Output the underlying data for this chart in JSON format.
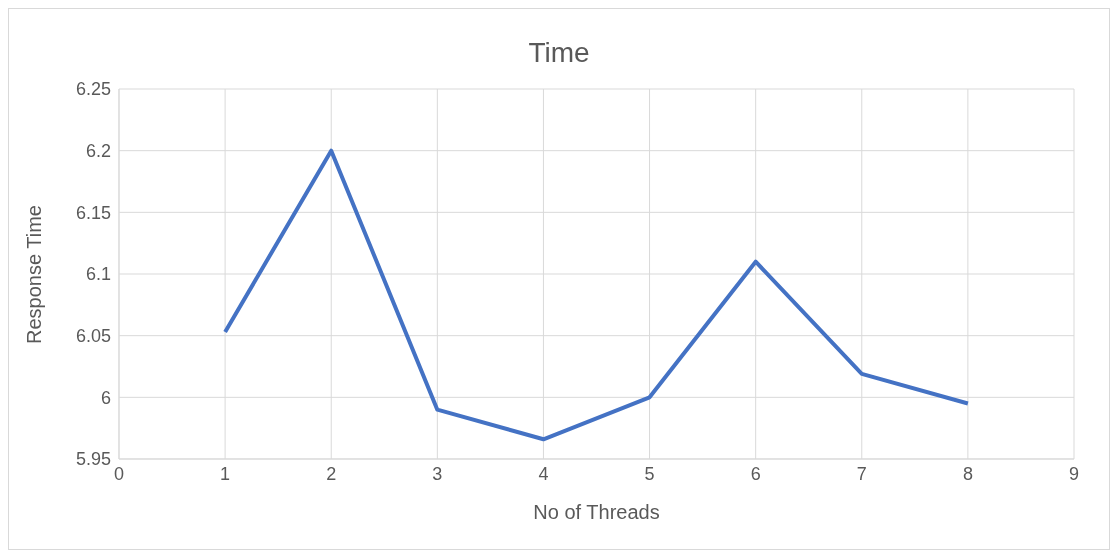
{
  "chart_data": {
    "type": "line",
    "title": "Time",
    "xlabel": "No of Threads",
    "ylabel": "Response Time",
    "x": [
      1,
      2,
      3,
      4,
      5,
      6,
      7,
      8
    ],
    "series": [
      {
        "color": "#4472c4",
        "values": [
          6.053,
          6.2,
          5.99,
          5.966,
          6.0,
          6.11,
          6.019,
          5.995
        ]
      }
    ],
    "xlim": [
      0,
      9
    ],
    "xticks": [
      0,
      1,
      2,
      3,
      4,
      5,
      6,
      7,
      8,
      9
    ],
    "ylim": [
      5.95,
      6.25
    ],
    "yticks": [
      5.95,
      6,
      6.05,
      6.1,
      6.15,
      6.2,
      6.25
    ],
    "grid": true,
    "legend": false,
    "marker": "none",
    "line_style": "solid"
  }
}
